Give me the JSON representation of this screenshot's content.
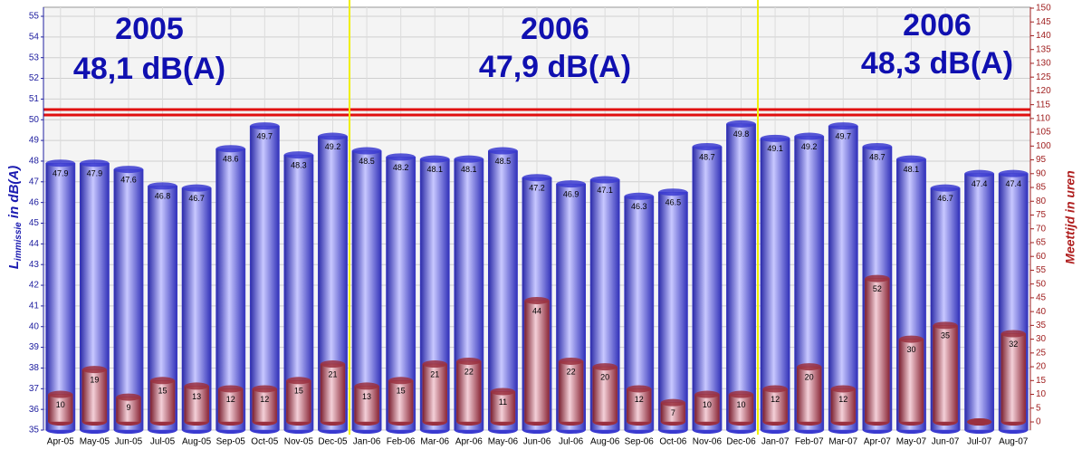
{
  "chart_data": {
    "type": "bar",
    "categories": [
      "Apr-05",
      "May-05",
      "Jun-05",
      "Jul-05",
      "Aug-05",
      "Sep-05",
      "Oct-05",
      "Nov-05",
      "Dec-05",
      "Jan-06",
      "Feb-06",
      "Mar-06",
      "Apr-06",
      "May-06",
      "Jun-06",
      "Jul-06",
      "Aug-06",
      "Sep-06",
      "Oct-06",
      "Nov-06",
      "Dec-06",
      "Jan-07",
      "Feb-07",
      "Mar-07",
      "Apr-07",
      "May-07",
      "Jun-07",
      "Jul-07",
      "Aug-07"
    ],
    "series": [
      {
        "color": "#3a3ad0",
        "values": [
          47.9,
          47.9,
          47.6,
          46.8,
          46.7,
          48.6,
          49.7,
          48.3,
          49.2,
          48.5,
          48.2,
          48.1,
          48.1,
          48.5,
          47.2,
          46.9,
          47.1,
          46.3,
          46.5,
          48.7,
          49.8,
          49.1,
          49.2,
          49.7,
          48.7,
          48.1,
          46.7,
          47.4,
          47.4
        ]
      },
      {
        "color": "#9a3040",
        "axis": "y2",
        "values": [
          10,
          19,
          9,
          15,
          13,
          12,
          12,
          15,
          21,
          13,
          15,
          21,
          22,
          11,
          44,
          22,
          20,
          12,
          7,
          10,
          10,
          12,
          20,
          12,
          52,
          30,
          35,
          0,
          32
        ]
      }
    ],
    "ylabel": {
      "main": "L",
      "sub": "immissie",
      "unit": " in dB(A)"
    },
    "y2label": "Meettijd in uren",
    "annotations": [
      {
        "year": "2005",
        "level": "48,1 dB(A)"
      },
      {
        "year": "2006",
        "level": "47,9 dB(A)"
      },
      {
        "year": "2006",
        "level": "48,3 dB(A)"
      }
    ],
    "ylim": [
      35,
      55
    ],
    "yticks": [
      35,
      36,
      37,
      38,
      39,
      40,
      41,
      42,
      43,
      44,
      45,
      46,
      47,
      48,
      49,
      50,
      51,
      52,
      53,
      54,
      55
    ],
    "y2lim": [
      0,
      150
    ],
    "y2ticks": [
      0,
      5,
      10,
      15,
      20,
      25,
      30,
      35,
      40,
      45,
      50,
      55,
      60,
      65,
      70,
      75,
      80,
      85,
      90,
      95,
      100,
      105,
      110,
      115,
      120,
      125,
      130,
      135,
      140,
      145,
      150
    ],
    "grid": true
  }
}
